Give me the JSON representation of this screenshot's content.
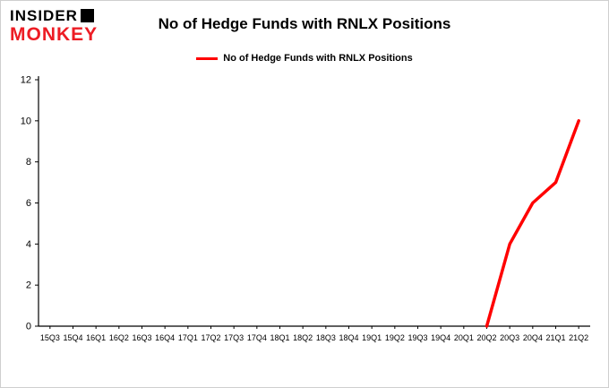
{
  "logo": {
    "line1": "INSIDER",
    "line2": "MONKEY"
  },
  "header": {
    "title": "No of Hedge Funds with RNLX Positions"
  },
  "legend": {
    "label": "No of Hedge Funds with RNLX Positions"
  },
  "colors": {
    "brand_red": "#ed1c24",
    "series_red": "#ff0000",
    "axis_black": "#000000"
  },
  "chart_data": {
    "type": "line",
    "title": "No of Hedge Funds with RNLX Positions",
    "xlabel": "",
    "ylabel": "",
    "categories": [
      "15Q3",
      "15Q4",
      "16Q1",
      "16Q2",
      "16Q3",
      "16Q4",
      "17Q1",
      "17Q2",
      "17Q3",
      "17Q4",
      "18Q1",
      "18Q2",
      "18Q3",
      "18Q4",
      "19Q1",
      "19Q2",
      "19Q3",
      "19Q4",
      "20Q1",
      "20Q2",
      "20Q3",
      "20Q4",
      "21Q1",
      "21Q2"
    ],
    "series": [
      {
        "name": "No of Hedge Funds with RNLX Positions",
        "color": "#ff0000",
        "values": [
          null,
          null,
          null,
          null,
          null,
          null,
          null,
          null,
          null,
          null,
          null,
          null,
          null,
          null,
          null,
          null,
          null,
          null,
          null,
          0,
          4,
          6,
          7,
          10
        ]
      }
    ],
    "ylim": [
      0,
      12
    ],
    "yticks": [
      0,
      2,
      4,
      6,
      8,
      10,
      12
    ],
    "grid": false,
    "legend_position": "top"
  }
}
